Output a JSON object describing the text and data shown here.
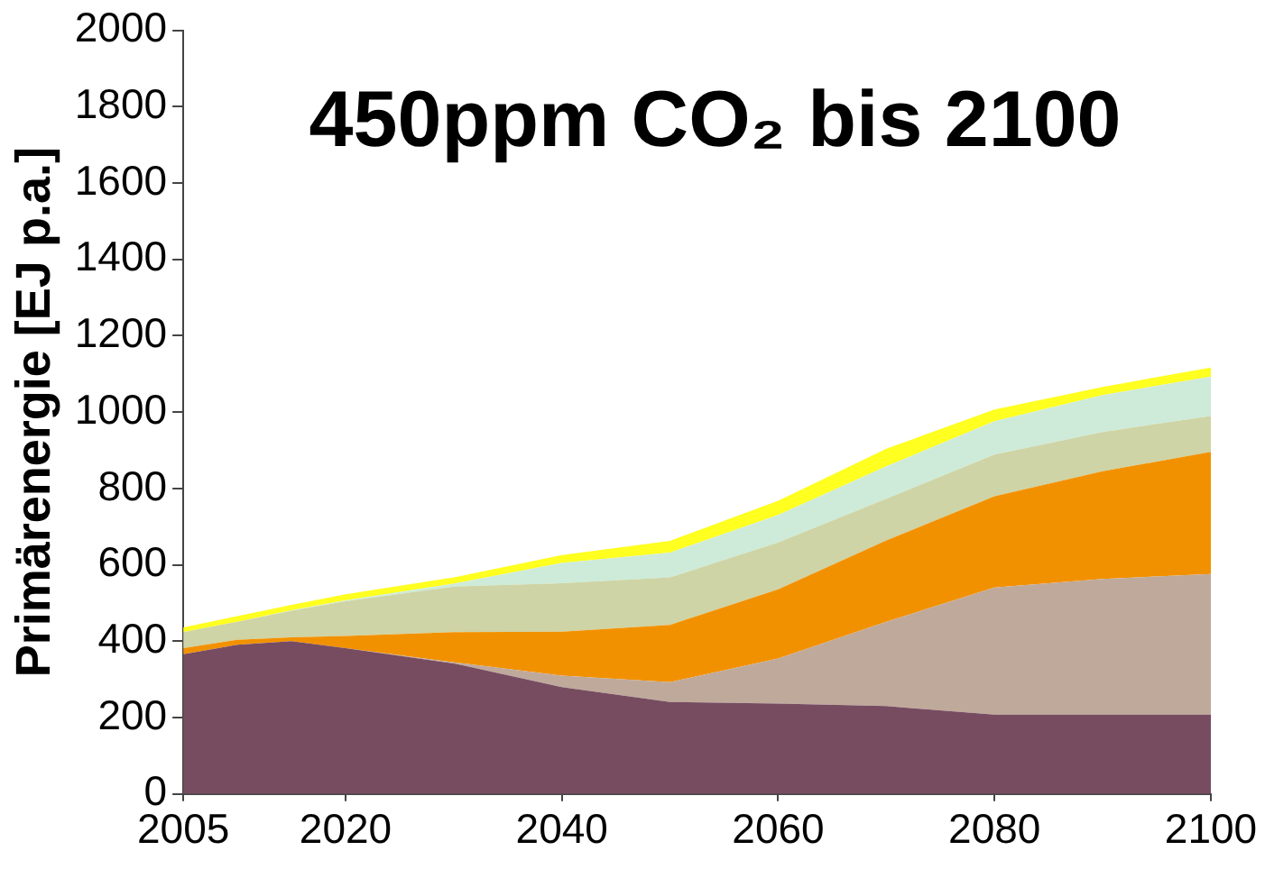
{
  "chart_data": {
    "type": "area",
    "title": "450ppm CO₂ bis 2100",
    "ylabel": "Primärenergie [EJ p.a.]",
    "x": [
      2005,
      2010,
      2015,
      2020,
      2030,
      2040,
      2050,
      2060,
      2070,
      2080,
      2090,
      2100
    ],
    "stacked": true,
    "series": [
      {
        "color": "#774c60",
        "values": [
          366,
          391,
          400,
          382,
          342,
          280,
          241,
          237,
          230,
          208,
          208,
          208
        ]
      },
      {
        "color": "#bfa99b",
        "values": [
          0,
          0,
          0,
          0,
          3,
          30,
          52,
          118,
          221,
          333,
          355,
          368
        ]
      },
      {
        "color": "#f29100",
        "values": [
          16,
          13,
          10,
          32,
          79,
          115,
          150,
          181,
          213,
          239,
          282,
          320
        ]
      },
      {
        "color": "#ced4a5",
        "values": [
          42,
          47,
          70,
          91,
          119,
          127,
          124,
          123,
          109,
          109,
          103,
          94
        ]
      },
      {
        "color": "#cdebd8",
        "values": [
          0,
          0,
          1,
          2,
          8,
          53,
          65,
          72,
          85,
          87,
          97,
          103
        ]
      },
      {
        "color": "#ffff20",
        "values": [
          12,
          15,
          14,
          16,
          16,
          21,
          31,
          37,
          46,
          31,
          21,
          24
        ]
      }
    ],
    "xlim": [
      2005,
      2100
    ],
    "xticks": [
      2005,
      2020,
      2040,
      2060,
      2080,
      2100
    ],
    "ylim": [
      0,
      2000
    ],
    "yticks": [
      0,
      200,
      400,
      600,
      800,
      1000,
      1200,
      1400,
      1600,
      1800,
      2000
    ],
    "grid": false,
    "legend": false
  }
}
